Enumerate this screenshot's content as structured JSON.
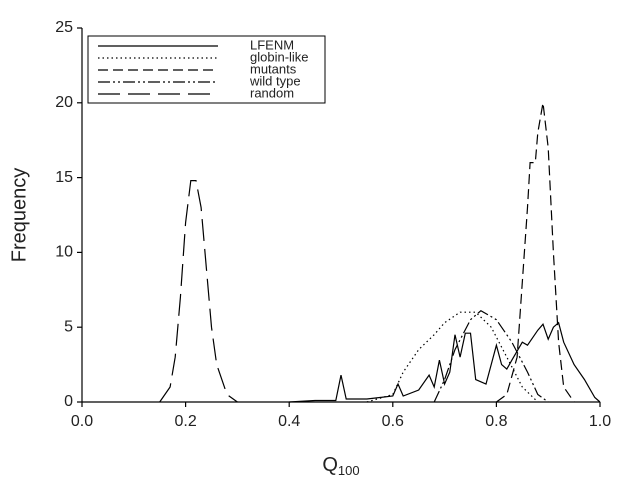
{
  "chart_data": {
    "type": "line",
    "x_label": {
      "text": "Q",
      "subscript": "100"
    },
    "y_label": "Frequency",
    "xlim": [
      0,
      1
    ],
    "ylim": [
      0,
      25
    ],
    "xticks": [
      {
        "value": 0,
        "label": "0.0"
      },
      0.2,
      0.4,
      0.6,
      0.8,
      {
        "value": 1,
        "label": "1.0"
      }
    ],
    "yticks": [
      0,
      5,
      10,
      15,
      20,
      25
    ],
    "legend": "upper left",
    "series": [
      {
        "name": "LFENM",
        "color": "#000000",
        "dash": "solid",
        "x": [
          0.4,
          0.45,
          0.49,
          0.5,
          0.51,
          0.55,
          0.6,
          0.61,
          0.62,
          0.65,
          0.67,
          0.68,
          0.69,
          0.7,
          0.71,
          0.72,
          0.73,
          0.74,
          0.75,
          0.76,
          0.78,
          0.8,
          0.81,
          0.82,
          0.83,
          0.85,
          0.86,
          0.88,
          0.89,
          0.9,
          0.91,
          0.92,
          0.93,
          0.95,
          0.97,
          0.99,
          1.0
        ],
        "values": [
          0,
          0.1,
          0.1,
          1.8,
          0.2,
          0.2,
          0.4,
          1.2,
          0.4,
          0.8,
          1.8,
          1,
          2.8,
          1.2,
          2,
          4.5,
          3,
          4.6,
          4.6,
          1.5,
          1.2,
          3.8,
          2.5,
          2.2,
          2.8,
          4,
          3.8,
          4.8,
          5.2,
          4.2,
          5,
          5.3,
          4,
          2.5,
          1.5,
          0.3,
          0
        ]
      },
      {
        "name": "globin-like",
        "color": "#000000",
        "dash": "dotted",
        "x": [
          0.55,
          0.6,
          0.62,
          0.65,
          0.68,
          0.7,
          0.73,
          0.76,
          0.79,
          0.82,
          0.85,
          0.88
        ],
        "values": [
          0,
          0.5,
          2,
          3.5,
          4.5,
          5.3,
          6,
          6,
          5,
          3,
          1,
          0
        ]
      },
      {
        "name": "mutants",
        "color": "#000000",
        "dash": "dashed",
        "x": [
          0.8,
          0.82,
          0.84,
          0.85,
          0.86,
          0.865,
          0.875,
          0.88,
          0.89,
          0.9,
          0.91,
          0.92,
          0.93,
          0.95
        ],
        "values": [
          0,
          0.5,
          3,
          8,
          13,
          16,
          16,
          18,
          20,
          17,
          10,
          4,
          1,
          0
        ]
      },
      {
        "name": "wild type",
        "color": "#000000",
        "dash": "dash-dot-dot",
        "x": [
          0.68,
          0.7,
          0.72,
          0.75,
          0.77,
          0.8,
          0.83,
          0.86,
          0.88,
          0.9
        ],
        "values": [
          0,
          1.5,
          3.5,
          5.5,
          6.1,
          5.5,
          4,
          2,
          0.5,
          0
        ]
      },
      {
        "name": "random",
        "color": "#000000",
        "dash": "long-dash",
        "x": [
          0.15,
          0.17,
          0.18,
          0.19,
          0.2,
          0.21,
          0.22,
          0.23,
          0.24,
          0.25,
          0.26,
          0.28,
          0.3
        ],
        "values": [
          0,
          1,
          3,
          7,
          12,
          14.8,
          14.8,
          13,
          9,
          5,
          2.5,
          0.5,
          0
        ]
      }
    ]
  }
}
